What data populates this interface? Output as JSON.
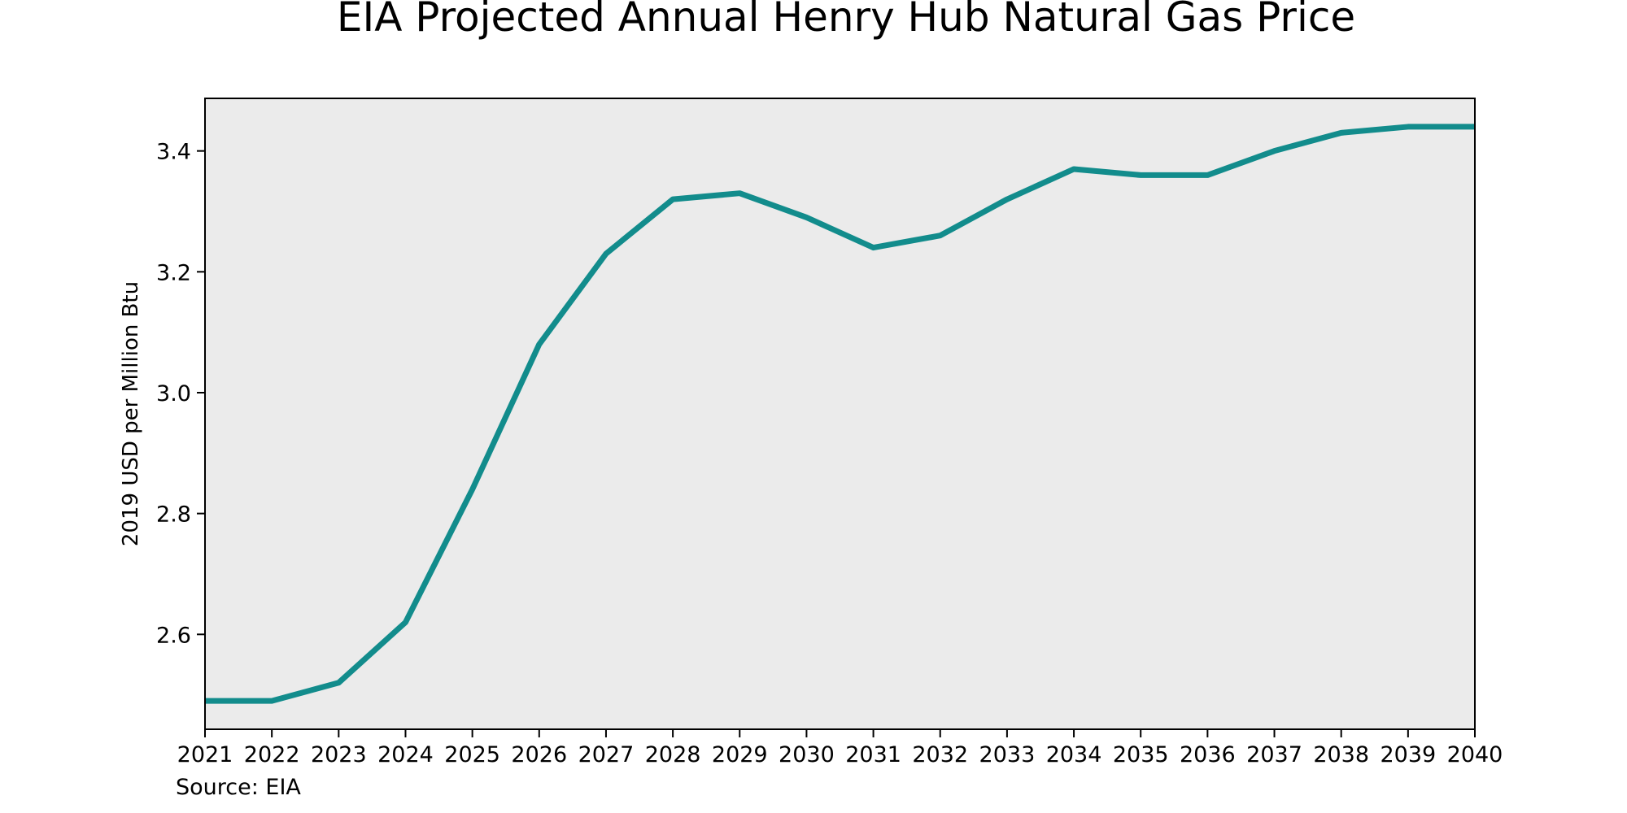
{
  "chart_data": {
    "type": "line",
    "title": "EIA Projected Annual Henry Hub Natural Gas Price",
    "xlabel": "",
    "ylabel": "2019 USD per Million Btu",
    "source": "Source: EIA",
    "x": [
      2021,
      2022,
      2023,
      2024,
      2025,
      2026,
      2027,
      2028,
      2029,
      2030,
      2031,
      2032,
      2033,
      2034,
      2035,
      2036,
      2037,
      2038,
      2039,
      2040
    ],
    "series": [
      {
        "values": [
          2.49,
          2.49,
          2.52,
          2.62,
          2.84,
          3.08,
          3.23,
          3.32,
          3.33,
          3.29,
          3.24,
          3.26,
          3.32,
          3.37,
          3.36,
          3.36,
          3.4,
          3.43,
          3.44,
          3.44
        ],
        "color": "#128c8c"
      }
    ],
    "xlim": [
      2021,
      2040
    ],
    "ylim": [
      2.443,
      3.487
    ],
    "yticks": [
      "2.6",
      "2.8",
      "3.0",
      "3.2",
      "3.4"
    ],
    "xticks": [
      "2021",
      "2022",
      "2023",
      "2024",
      "2025",
      "2026",
      "2027",
      "2028",
      "2029",
      "2030",
      "2031",
      "2032",
      "2033",
      "2034",
      "2035",
      "2036",
      "2037",
      "2038",
      "2039",
      "2040"
    ],
    "grid": false,
    "legend": "none",
    "colors": {
      "plot_background": "#ebebeb",
      "line": "#128c8c",
      "axis": "#000000"
    }
  }
}
